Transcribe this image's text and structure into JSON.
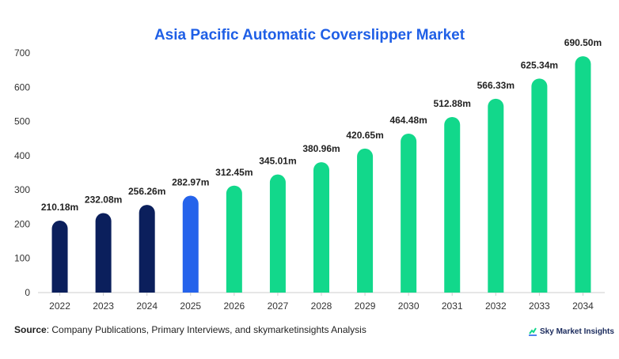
{
  "chart_data": {
    "type": "bar",
    "title": "Asia Pacific Automatic Coverslipper Market",
    "categories": [
      "2022",
      "2023",
      "2024",
      "2025",
      "2026",
      "2027",
      "2028",
      "2029",
      "2030",
      "2031",
      "2032",
      "2033",
      "2034"
    ],
    "values": [
      210.18,
      232.08,
      256.26,
      282.97,
      312.45,
      345.01,
      380.96,
      420.65,
      464.48,
      512.88,
      566.33,
      625.34,
      690.5
    ],
    "value_labels": [
      "210.18m",
      "232.08m",
      "256.26m",
      "282.97m",
      "312.45m",
      "345.01m",
      "380.96m",
      "420.65m",
      "464.48m",
      "512.88m",
      "566.33m",
      "625.34m",
      "690.50m"
    ],
    "ylim": [
      0,
      700
    ],
    "yticks": [
      0,
      100,
      200,
      300,
      400,
      500,
      600,
      700
    ],
    "grid": false,
    "bar_colors": [
      "#0b1f5c",
      "#0b1f5c",
      "#0b1f5c",
      "#2563eb",
      "#12d88b",
      "#12d88b",
      "#12d88b",
      "#12d88b",
      "#12d88b",
      "#12d88b",
      "#12d88b",
      "#12d88b",
      "#12d88b"
    ]
  },
  "source": {
    "label": "Source",
    "text": ": Company Publications, Primary Interviews, and skymarketinsights Analysis"
  },
  "brand": {
    "name": "Sky Market Insights",
    "logo_icon": "sky-market-insights-logo-icon"
  }
}
